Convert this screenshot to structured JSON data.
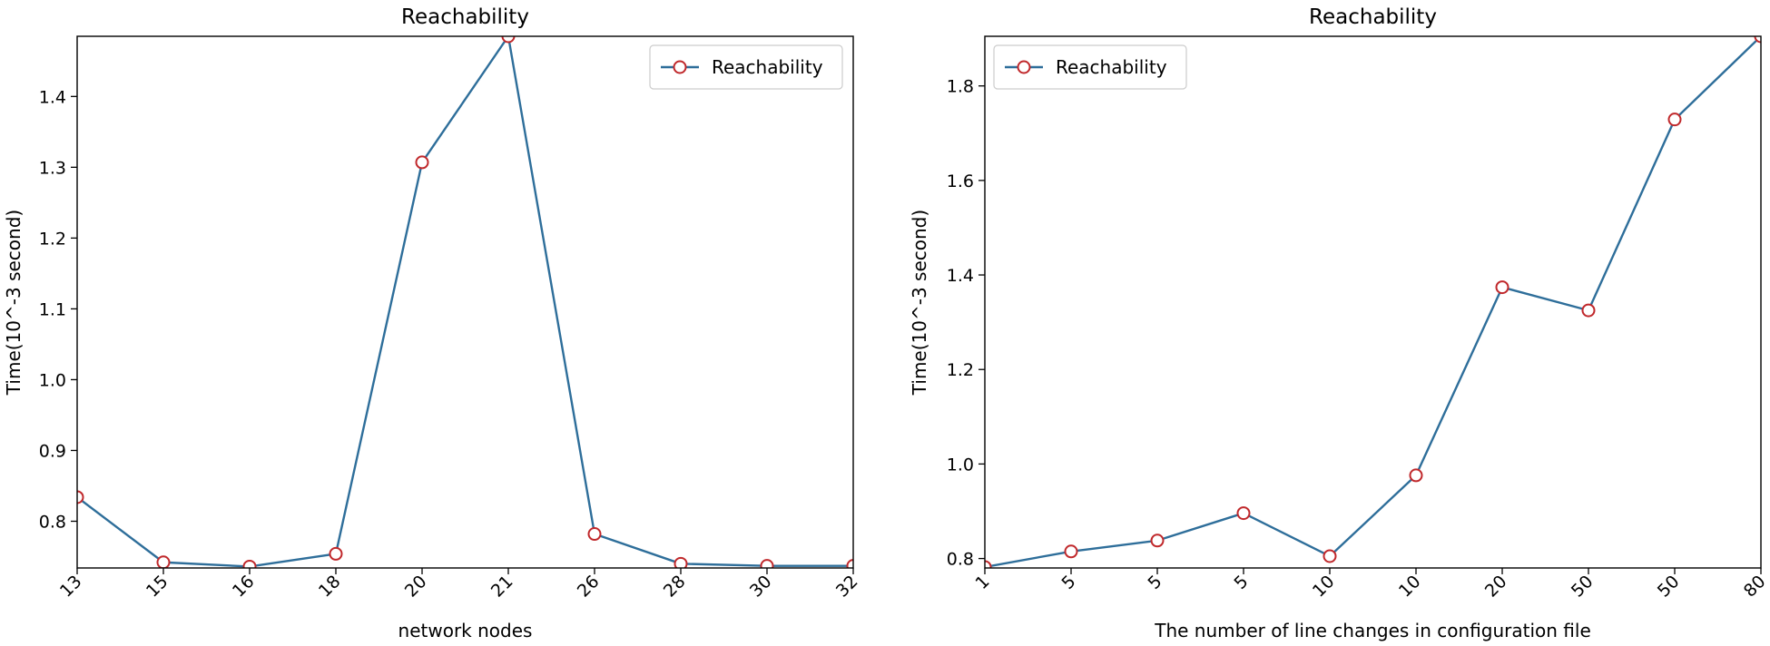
{
  "chart_data": [
    {
      "type": "line",
      "title": "Reachability",
      "xlabel": "network nodes",
      "ylabel": "Time(10^-3 second)",
      "categories": [
        "13",
        "15",
        "16",
        "18",
        "20",
        "21",
        "26",
        "28",
        "30",
        "32"
      ],
      "series": [
        {
          "name": "Reachability",
          "values": [
            0.834,
            0.742,
            0.736,
            0.754,
            1.307,
            1.485,
            0.782,
            0.74,
            0.737,
            0.737
          ]
        }
      ],
      "ylim": [
        0.734,
        1.485
      ],
      "yticks": [
        0.8,
        0.9,
        1.0,
        1.1,
        1.2,
        1.3,
        1.4
      ],
      "grid": false,
      "legend": "top-right",
      "colors": {
        "line": "#2e6e9a",
        "marker_edge": "#c0282b",
        "marker_face": "#ffffff"
      }
    },
    {
      "type": "line",
      "title": "Reachability",
      "xlabel": "The number of line changes in configuration file",
      "ylabel": "Time(10^-3 second)",
      "categories": [
        "1",
        "5",
        "5",
        "5",
        "10",
        "10",
        "20",
        "50",
        "50",
        "80"
      ],
      "series": [
        {
          "name": "Reachability",
          "values": [
            0.782,
            0.815,
            0.838,
            0.896,
            0.805,
            0.976,
            1.374,
            1.325,
            1.729,
            1.905
          ]
        }
      ],
      "ylim": [
        0.78,
        1.905
      ],
      "yticks": [
        0.8,
        1.0,
        1.2,
        1.4,
        1.6,
        1.8
      ],
      "grid": false,
      "legend": "top-left",
      "colors": {
        "line": "#2e6e9a",
        "marker_edge": "#c0282b",
        "marker_face": "#ffffff"
      }
    }
  ]
}
